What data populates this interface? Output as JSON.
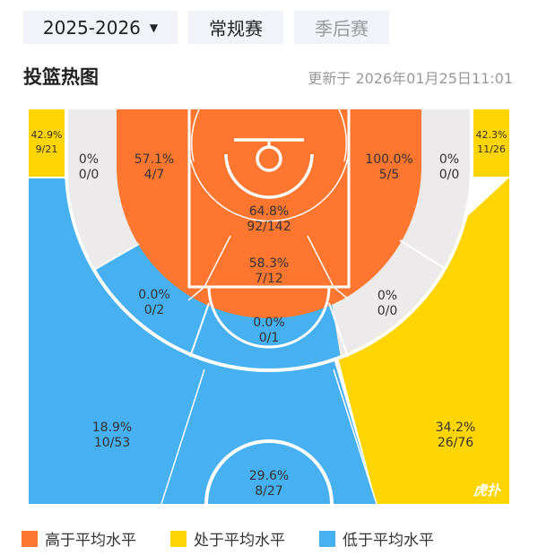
{
  "header": {
    "season": "2025-2026",
    "season_caret": "▼",
    "tabs": [
      {
        "label": "常规赛",
        "active": true
      },
      {
        "label": "季后赛",
        "active": false
      }
    ]
  },
  "section": {
    "title": "投篮热图",
    "updated": "更新于 2026年01月25日11:01"
  },
  "colors": {
    "above": "#FF7630",
    "average": "#FFD500",
    "below": "#46B0F0",
    "none": "#ECEAEA"
  },
  "zones": {
    "left_corner_three": {
      "pct": "42.9%",
      "made": "9/21",
      "level": "average"
    },
    "right_corner_three": {
      "pct": "42.3%",
      "made": "11/26",
      "level": "average"
    },
    "left_wing_long_two": {
      "pct": "0%",
      "made": "0/0",
      "level": "none"
    },
    "right_wing_long_two": {
      "pct": "0%",
      "made": "0/0",
      "level": "none"
    },
    "left_mid": {
      "pct": "57.1%",
      "made": "4/7",
      "level": "above"
    },
    "right_mid": {
      "pct": "100.0%",
      "made": "5/5",
      "level": "above"
    },
    "restricted": {
      "pct": "64.8%",
      "made": "92/142",
      "level": "above"
    },
    "paint": {
      "pct": "58.3%",
      "made": "7/12",
      "level": "above"
    },
    "left_center_long_two": {
      "pct": "0.0%",
      "made": "0/2",
      "level": "below"
    },
    "top_long_two": {
      "pct": "0.0%",
      "made": "0/1",
      "level": "below"
    },
    "right_center_long_two": {
      "pct": "0%",
      "made": "0/0",
      "level": "none"
    },
    "left_three": {
      "pct": "18.9%",
      "made": "10/53",
      "level": "below"
    },
    "top_three": {
      "pct": "29.6%",
      "made": "8/27",
      "level": "below"
    },
    "right_three": {
      "pct": "34.2%",
      "made": "26/76",
      "level": "average"
    }
  },
  "watermark": "虎扑",
  "legend": [
    {
      "label": "高于平均水平",
      "color": "#FF7630"
    },
    {
      "label": "处于平均水平",
      "color": "#FFD500"
    },
    {
      "label": "低于平均水平",
      "color": "#46B0F0"
    }
  ]
}
